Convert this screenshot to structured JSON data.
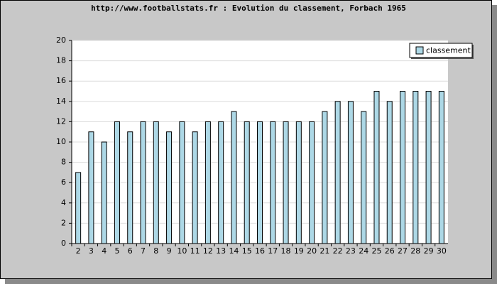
{
  "chart_data": {
    "type": "bar",
    "title": "http://www.footballstats.fr : Evolution du classement, Forbach 1965",
    "categories": [
      "2",
      "3",
      "4",
      "5",
      "6",
      "7",
      "8",
      "9",
      "10",
      "11",
      "12",
      "13",
      "14",
      "15",
      "16",
      "17",
      "18",
      "19",
      "20",
      "21",
      "22",
      "23",
      "24",
      "25",
      "26",
      "27",
      "28",
      "29",
      "30"
    ],
    "series": [
      {
        "name": "classement",
        "color": "#add8e6",
        "values": [
          7,
          11,
          10,
          12,
          11,
          12,
          12,
          11,
          12,
          11,
          12,
          12,
          13,
          12,
          12,
          12,
          12,
          12,
          12,
          13,
          14,
          14,
          13,
          15,
          14,
          15,
          15,
          15,
          15
        ]
      }
    ],
    "ylim": [
      0,
      20
    ],
    "yticks": [
      0,
      2,
      4,
      6,
      8,
      10,
      12,
      14,
      16,
      18,
      20
    ],
    "grid": true,
    "legend": "top-right"
  }
}
